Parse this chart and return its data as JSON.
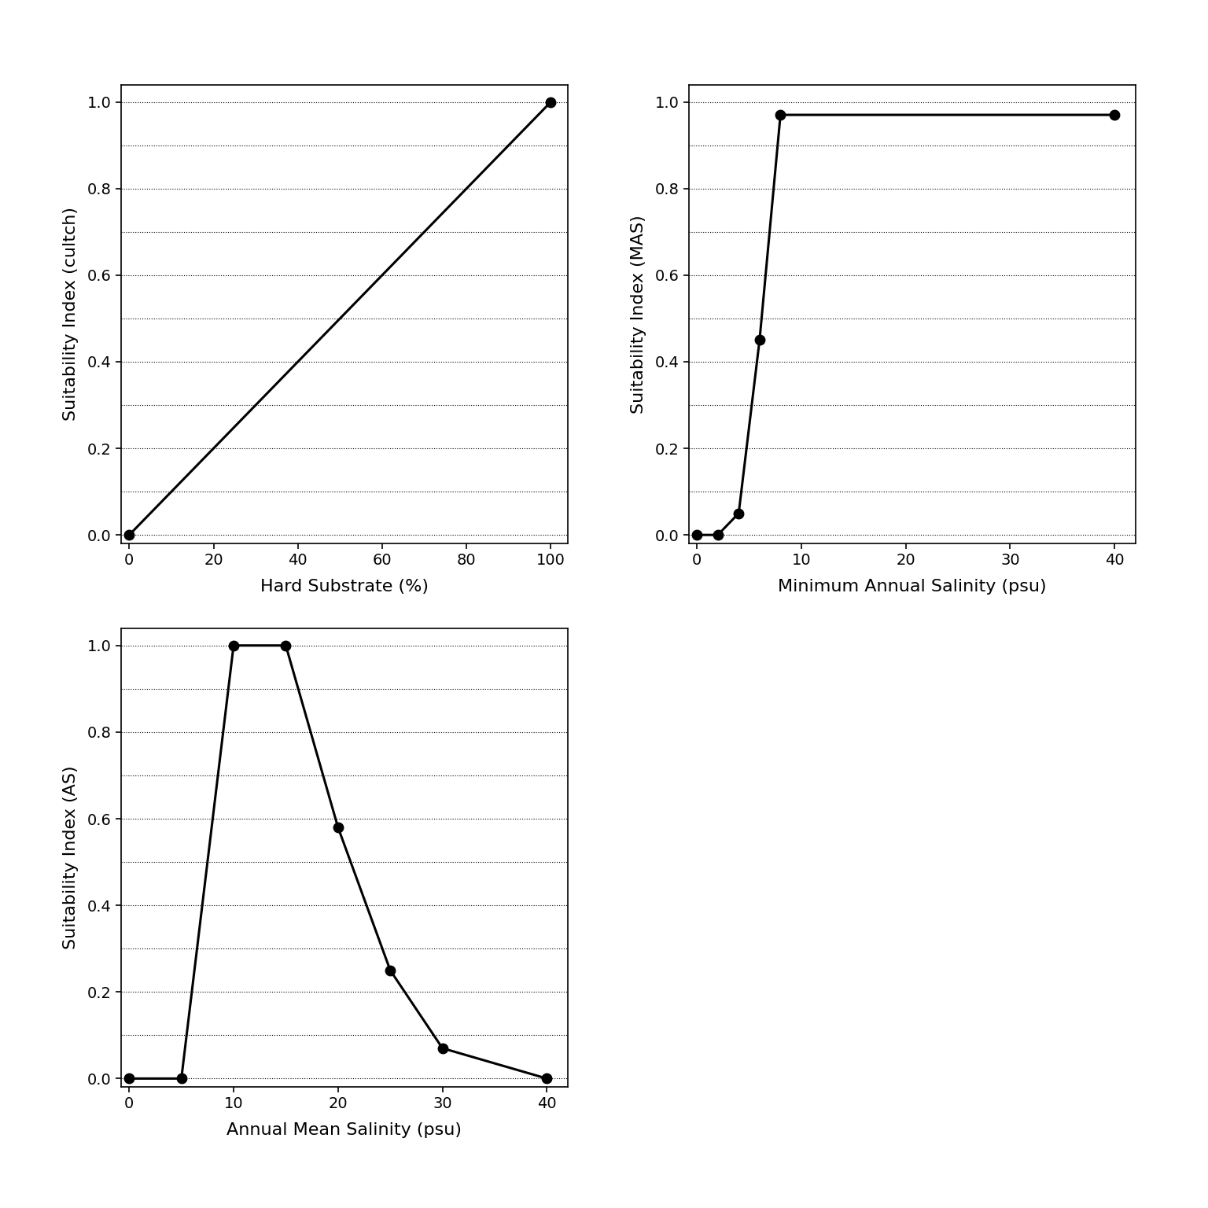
{
  "plot1": {
    "x": [
      0,
      100
    ],
    "y": [
      0.0,
      1.0
    ],
    "xlabel": "Hard Substrate (%)",
    "ylabel": "Suitability Index (cultch)",
    "xlim": [
      -2,
      104
    ],
    "ylim": [
      -0.02,
      1.04
    ],
    "xticks": [
      0,
      20,
      40,
      60,
      80,
      100
    ],
    "yticks": [
      0.0,
      0.2,
      0.4,
      0.6,
      0.8,
      1.0
    ]
  },
  "plot2": {
    "x": [
      0,
      2,
      4,
      6,
      8,
      40
    ],
    "y": [
      0.0,
      0.0,
      0.05,
      0.45,
      0.97,
      0.97
    ],
    "xlabel": "Minimum Annual Salinity (psu)",
    "ylabel": "Suitability Index (MAS)",
    "xlim": [
      -0.8,
      42
    ],
    "ylim": [
      -0.02,
      1.04
    ],
    "xticks": [
      0,
      10,
      20,
      30,
      40
    ],
    "yticks": [
      0.0,
      0.2,
      0.4,
      0.6,
      0.8,
      1.0
    ]
  },
  "plot3": {
    "x": [
      0,
      5,
      10,
      15,
      20,
      25,
      30,
      40
    ],
    "y": [
      0.0,
      0.0,
      1.0,
      1.0,
      0.58,
      0.25,
      0.07,
      0.0
    ],
    "xlabel": "Annual Mean Salinity (psu)",
    "ylabel": "Suitability Index (AS)",
    "xlim": [
      -0.8,
      42
    ],
    "ylim": [
      -0.02,
      1.04
    ],
    "xticks": [
      0,
      10,
      20,
      30,
      40
    ],
    "yticks": [
      0.0,
      0.2,
      0.4,
      0.6,
      0.8,
      1.0
    ]
  },
  "background_color": "#ffffff",
  "line_color": "#000000",
  "marker": "o",
  "markersize": 9,
  "linewidth": 2.2,
  "xlabel_fontsize": 16,
  "ylabel_fontsize": 16,
  "tick_fontsize": 14,
  "grid_linestyle": "dotted",
  "grid_color": "#000000",
  "grid_linewidth": 0.8
}
